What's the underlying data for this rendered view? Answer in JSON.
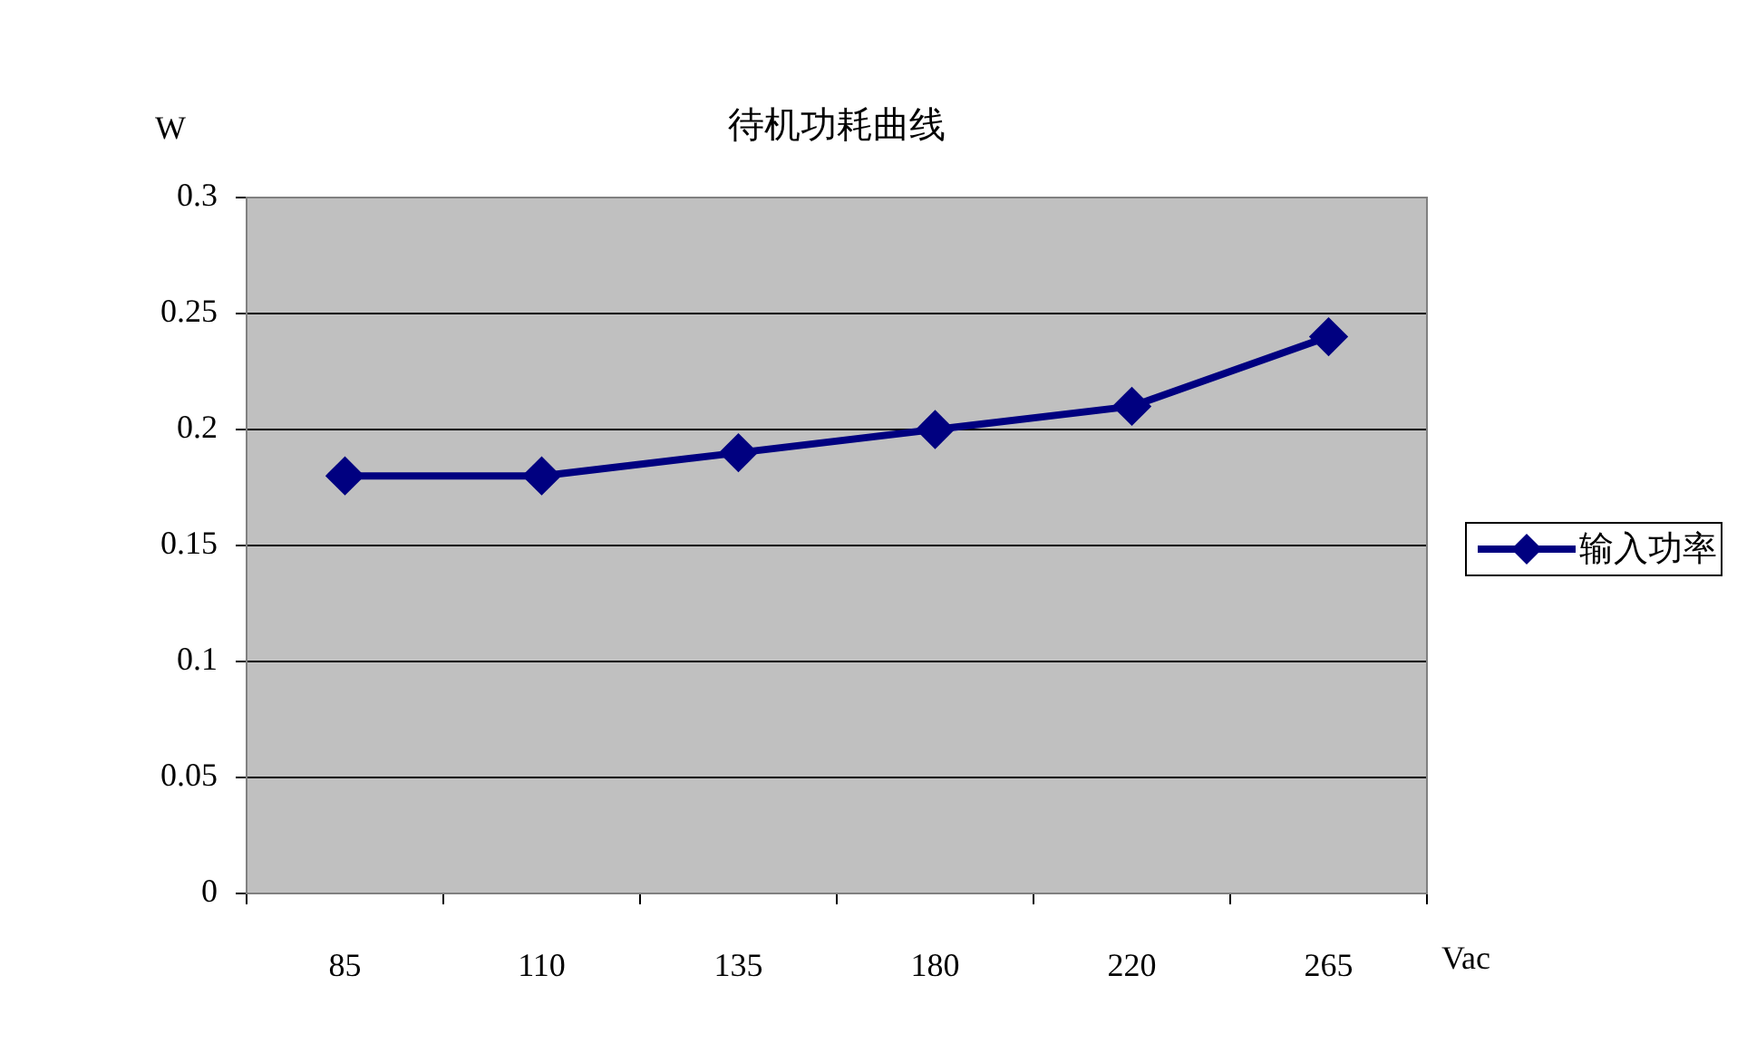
{
  "chart_data": {
    "type": "line",
    "title": "待机功耗曲线",
    "ylabel": "W",
    "xlabel": "Vac",
    "categories": [
      "85",
      "110",
      "135",
      "180",
      "220",
      "265"
    ],
    "series": [
      {
        "name": "输入功率",
        "color": "#000080",
        "values": [
          0.18,
          0.18,
          0.19,
          0.2,
          0.21,
          0.24
        ]
      }
    ],
    "ylim": [
      0,
      0.3
    ],
    "yticks": [
      0,
      0.05,
      0.1,
      0.15,
      0.2,
      0.25,
      0.3
    ],
    "grid": "y",
    "legend": "right",
    "marker": "diamond",
    "line_style": "solid"
  }
}
